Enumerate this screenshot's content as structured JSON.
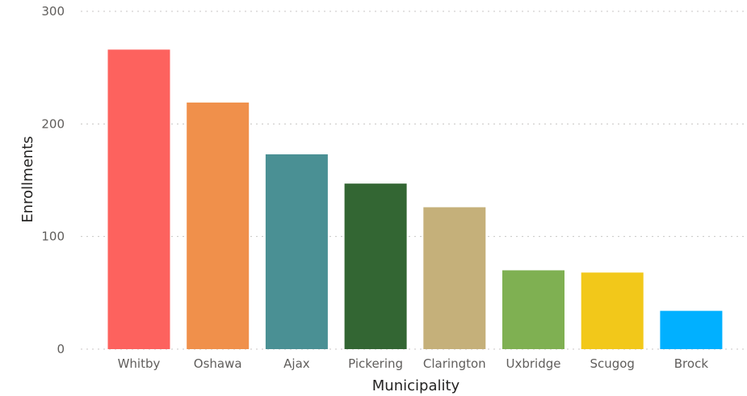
{
  "chart_data": {
    "type": "bar",
    "title": "",
    "xlabel": "Municipality",
    "ylabel": "Enrollments",
    "categories": [
      "Whitby",
      "Oshawa",
      "Ajax",
      "Pickering",
      "Clarington",
      "Uxbridge",
      "Scugog",
      "Brock"
    ],
    "values": [
      266,
      219,
      173,
      147,
      126,
      70,
      68,
      34
    ],
    "colors": [
      "#fd625e",
      "#f0904b",
      "#4a9094",
      "#336633",
      "#c5b07a",
      "#7fb052",
      "#f2c81a",
      "#01b0ff"
    ],
    "ylim": [
      0,
      300
    ],
    "yticks": [
      0,
      100,
      200,
      300
    ],
    "grid": true,
    "legend": "none"
  }
}
